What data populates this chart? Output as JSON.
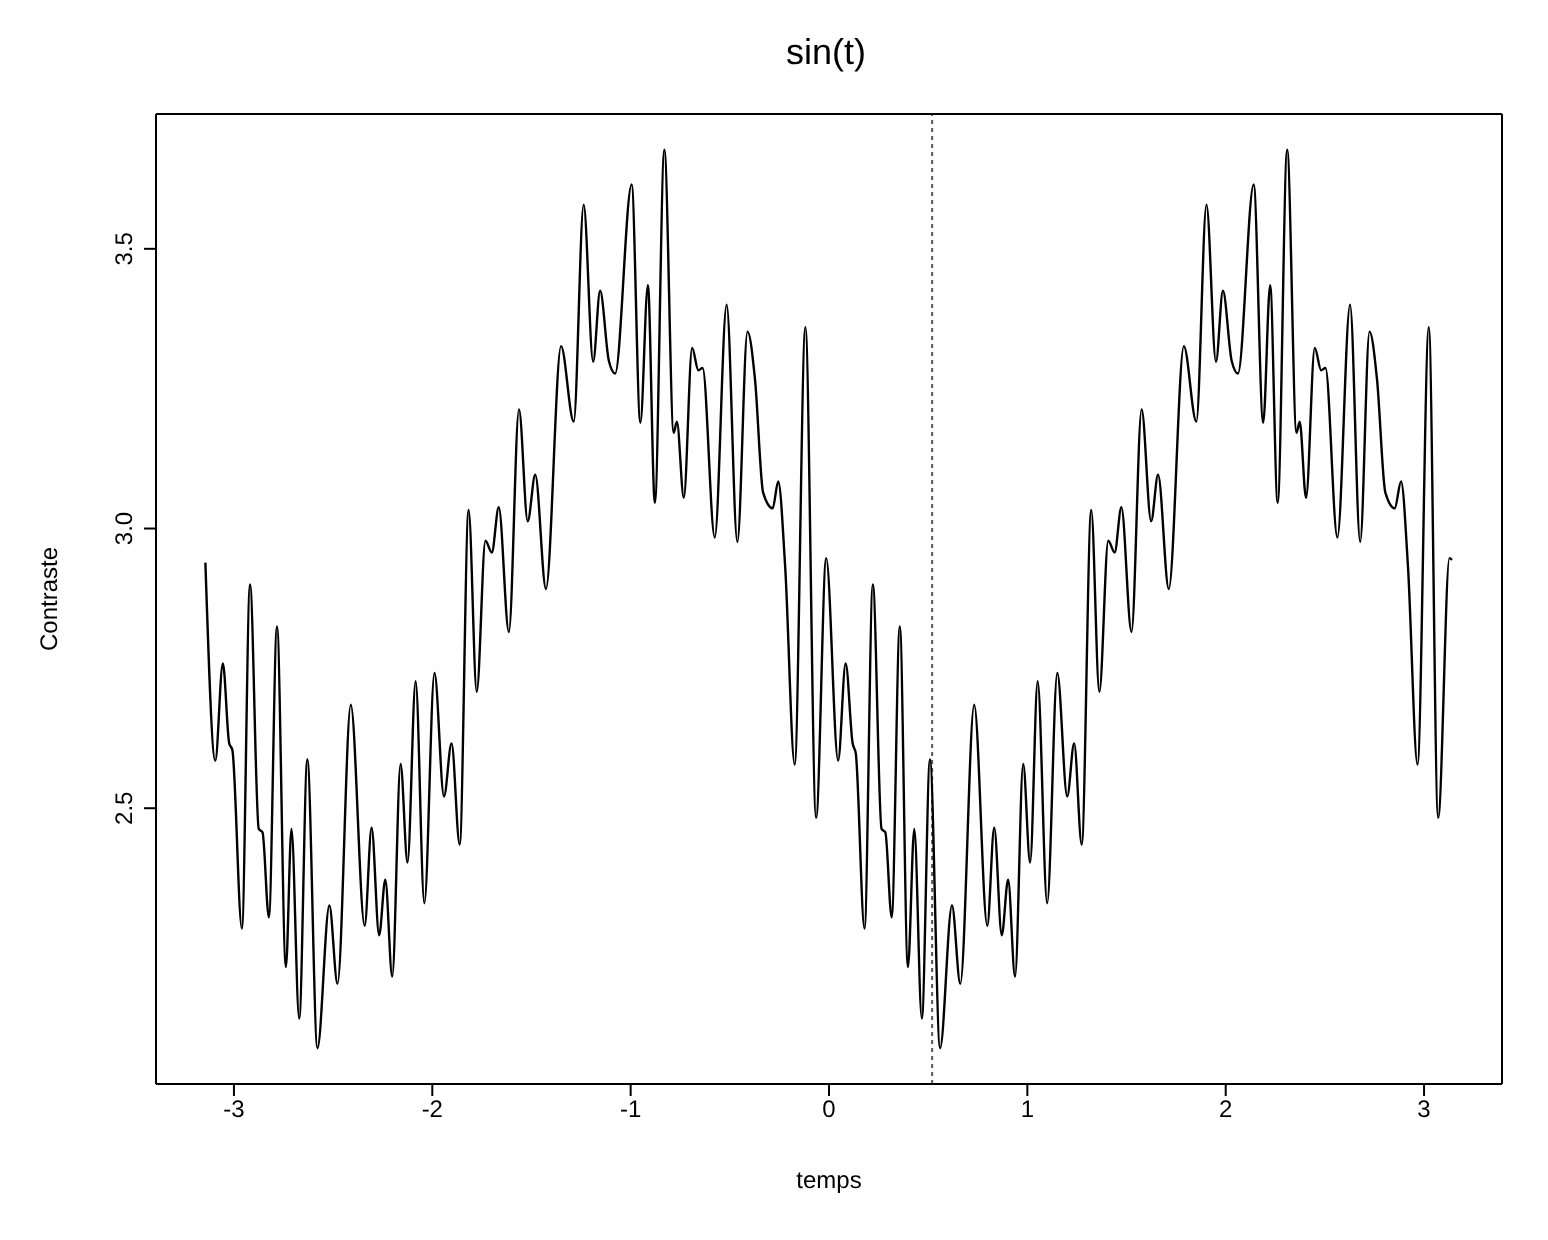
{
  "chart_data": {
    "type": "line",
    "title": "sin(t)",
    "xlabel": "temps",
    "ylabel": "Contraste",
    "color": "#000000",
    "line_style": "solid",
    "marker": "none",
    "grid": false,
    "legend": false,
    "xlim": [
      -3.393,
      3.393
    ],
    "xticks": [
      -3,
      -2,
      -1,
      0,
      1,
      2,
      3
    ],
    "ylim": [
      2.007,
      3.741
    ],
    "yticks": [
      {
        "value": 2.5,
        "label": "2.5"
      },
      {
        "value": 3,
        "label": "3.0"
      },
      {
        "value": 3.5,
        "label": "3.5"
      }
    ],
    "ref_lines": [
      {
        "axis": "x",
        "value": 0.52,
        "line_style": "dotted",
        "color": "#555555"
      }
    ],
    "x": [
      -3.144,
      -3.094,
      -3.056,
      -3.024,
      -3.008,
      -2.96,
      -2.919,
      -2.875,
      -2.856,
      -2.824,
      -2.783,
      -2.738,
      -2.71,
      -2.671,
      -2.63,
      -2.579,
      -2.519,
      -2.478,
      -2.411,
      -2.341,
      -2.306,
      -2.268,
      -2.237,
      -2.202,
      -2.16,
      -2.125,
      -2.084,
      -2.04,
      -1.989,
      -1.941,
      -1.903,
      -1.862,
      -1.817,
      -1.776,
      -1.732,
      -1.7,
      -1.665,
      -1.614,
      -1.563,
      -1.519,
      -1.481,
      -1.427,
      -1.351,
      -1.287,
      -1.237,
      -1.189,
      -1.154,
      -1.11,
      -1.078,
      -0.995,
      -0.951,
      -0.913,
      -0.878,
      -0.83,
      -0.783,
      -0.767,
      -0.732,
      -0.69,
      -0.659,
      -0.637,
      -0.576,
      -0.516,
      -0.462,
      -0.411,
      -0.373,
      -0.332,
      -0.284,
      -0.256,
      -0.221,
      -0.173,
      -0.119,
      -0.065,
      -0.014,
      0.046,
      0.084,
      0.119,
      0.135,
      0.179,
      0.221,
      0.265,
      0.284,
      0.316,
      0.357,
      0.398,
      0.43,
      0.468,
      0.509,
      0.56,
      0.62,
      0.662,
      0.732,
      0.798,
      0.833,
      0.871,
      0.903,
      0.938,
      0.979,
      1.014,
      1.052,
      1.1,
      1.151,
      1.201,
      1.236,
      1.274,
      1.322,
      1.363,
      1.408,
      1.44,
      1.474,
      1.525,
      1.576,
      1.624,
      1.659,
      1.713,
      1.789,
      1.852,
      1.903,
      1.951,
      1.986,
      2.03,
      2.062,
      2.141,
      2.189,
      2.224,
      2.262,
      2.31,
      2.357,
      2.373,
      2.405,
      2.449,
      2.481,
      2.503,
      2.563,
      2.627,
      2.678,
      2.725,
      2.763,
      2.805,
      2.852,
      2.884,
      2.919,
      2.967,
      3.024,
      3.071,
      3.128,
      3.141
    ],
    "values": [
      2.939,
      2.585,
      2.759,
      2.616,
      2.604,
      2.285,
      2.9,
      2.463,
      2.457,
      2.305,
      2.825,
      2.216,
      2.463,
      2.124,
      2.587,
      2.071,
      2.326,
      2.186,
      2.685,
      2.29,
      2.465,
      2.273,
      2.372,
      2.199,
      2.579,
      2.403,
      2.727,
      2.33,
      2.742,
      2.521,
      2.616,
      2.435,
      3.033,
      2.708,
      2.978,
      2.957,
      3.038,
      2.815,
      3.213,
      3.013,
      3.096,
      2.892,
      3.326,
      3.191,
      3.579,
      3.298,
      3.425,
      3.3,
      3.277,
      3.615,
      3.189,
      3.435,
      3.046,
      3.677,
      3.171,
      3.191,
      3.055,
      3.323,
      3.283,
      3.287,
      2.984,
      3.4,
      2.976,
      3.352,
      3.266,
      3.064,
      3.036,
      3.084,
      2.932,
      2.578,
      3.36,
      2.483,
      2.947,
      2.585,
      2.759,
      2.616,
      2.598,
      2.285,
      2.9,
      2.463,
      2.457,
      2.305,
      2.825,
      2.216,
      2.463,
      2.124,
      2.587,
      2.071,
      2.326,
      2.186,
      2.685,
      2.29,
      2.465,
      2.273,
      2.372,
      2.199,
      2.579,
      2.403,
      2.727,
      2.33,
      2.742,
      2.521,
      2.616,
      2.435,
      3.033,
      2.708,
      2.978,
      2.957,
      3.038,
      2.815,
      3.213,
      3.013,
      3.096,
      2.892,
      3.326,
      3.191,
      3.579,
      3.298,
      3.425,
      3.3,
      3.277,
      3.615,
      3.189,
      3.435,
      3.046,
      3.677,
      3.171,
      3.191,
      3.055,
      3.323,
      3.283,
      3.287,
      2.984,
      3.4,
      2.976,
      3.352,
      3.266,
      3.064,
      3.036,
      3.084,
      2.932,
      2.578,
      3.36,
      2.483,
      2.947,
      2.944
    ]
  }
}
